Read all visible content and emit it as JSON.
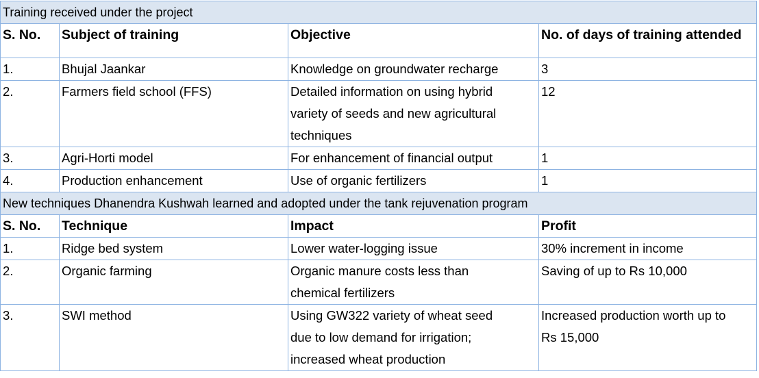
{
  "training_section": {
    "title": "Training received under the project",
    "headers": [
      "S. No.",
      "Subject of training",
      "Objective",
      "No. of days of training attended"
    ],
    "rows": [
      {
        "sno": "1.",
        "subject": "Bhujal Jaankar",
        "objective": [
          "Knowledge on groundwater recharge"
        ],
        "days": "3"
      },
      {
        "sno": "2.",
        "subject": "Farmers field school (FFS)",
        "objective": [
          "Detailed information on using hybrid",
          "variety of seeds and new agricultural",
          "techniques"
        ],
        "days": "12"
      },
      {
        "sno": "3.",
        "subject": "Agri-Horti model",
        "objective": [
          "For enhancement of financial output"
        ],
        "days": "1"
      },
      {
        "sno": "4.",
        "subject": "Production enhancement",
        "objective": [
          "Use of organic fertilizers"
        ],
        "days": "1"
      }
    ]
  },
  "techniques_section": {
    "title": "New techniques Dhanendra Kushwah learned and adopted under the tank rejuvenation program",
    "headers": [
      "S. No.",
      "Technique",
      "Impact",
      "Profit"
    ],
    "rows": [
      {
        "sno": "1.",
        "technique": "Ridge bed system",
        "impact": [
          "Lower water-logging issue"
        ],
        "profit": [
          "30% increment in income"
        ]
      },
      {
        "sno": "2.",
        "technique": "Organic farming",
        "impact": [
          "Organic manure costs less than",
          "chemical fertilizers"
        ],
        "profit": [
          "Saving of up to Rs 10,000"
        ]
      },
      {
        "sno": "3.",
        "technique": "SWI method",
        "impact": [
          "Using GW322 variety of wheat seed",
          "due to low demand for irrigation;",
          "increased wheat production"
        ],
        "profit": [
          "Increased production worth up to",
          "Rs 15,000"
        ]
      }
    ]
  }
}
